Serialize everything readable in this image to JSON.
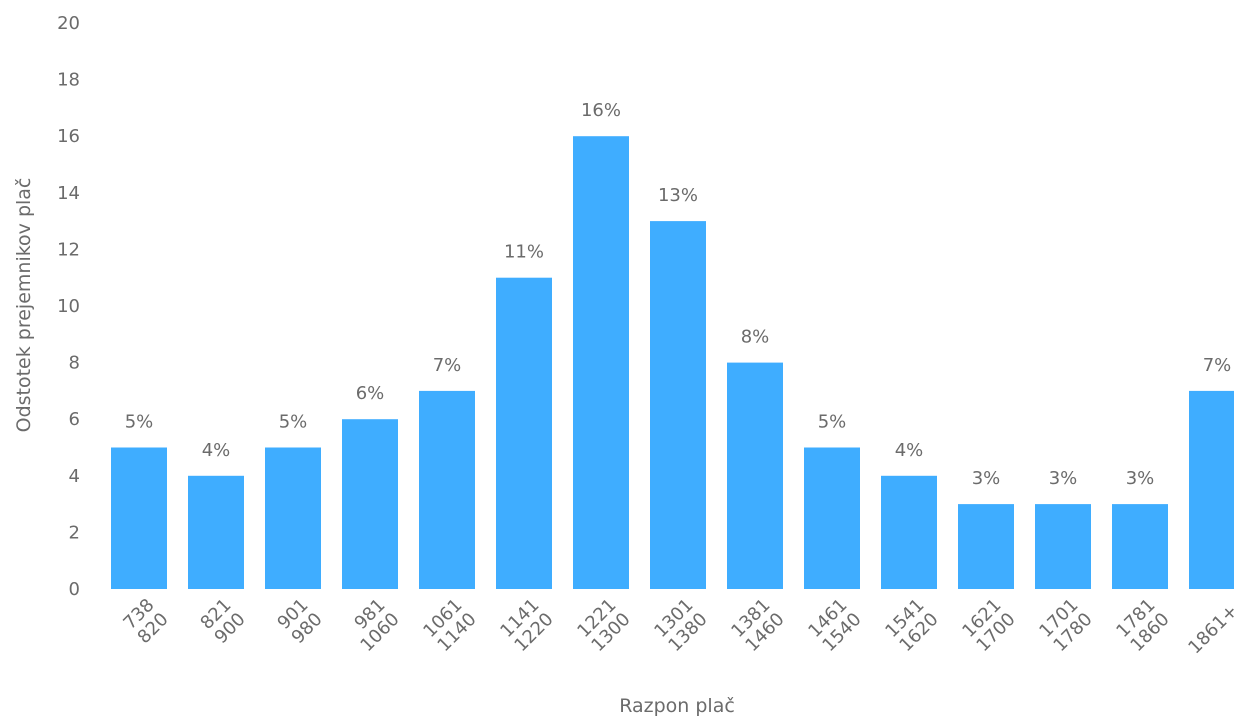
{
  "chart_data": {
    "type": "bar",
    "categories": [
      [
        "738",
        "820"
      ],
      [
        "821",
        "900"
      ],
      [
        "901",
        "980"
      ],
      [
        "981",
        "1060"
      ],
      [
        "1061",
        "1140"
      ],
      [
        "1141",
        "1220"
      ],
      [
        "1221",
        "1300"
      ],
      [
        "1301",
        "1380"
      ],
      [
        "1381",
        "1460"
      ],
      [
        "1461",
        "1540"
      ],
      [
        "1541",
        "1620"
      ],
      [
        "1621",
        "1700"
      ],
      [
        "1701",
        "1780"
      ],
      [
        "1781",
        "1860"
      ],
      [
        "1861+"
      ]
    ],
    "values": [
      5,
      4,
      5,
      6,
      7,
      11,
      16,
      13,
      8,
      5,
      4,
      3,
      3,
      3,
      7
    ],
    "data_labels": [
      "5%",
      "4%",
      "5%",
      "6%",
      "7%",
      "11%",
      "16%",
      "13%",
      "8%",
      "5%",
      "4%",
      "3%",
      "3%",
      "3%",
      "7%"
    ],
    "xlabel": "Razpon plač",
    "ylabel": "Odstotek prejemnikov plač",
    "ylim": [
      0,
      20
    ],
    "yticks": [
      0,
      2,
      4,
      6,
      8,
      10,
      12,
      14,
      16,
      18,
      20
    ],
    "grid": false,
    "legend": "none",
    "bar_color": "#3fadff",
    "text_color": "#6b6b6b"
  }
}
